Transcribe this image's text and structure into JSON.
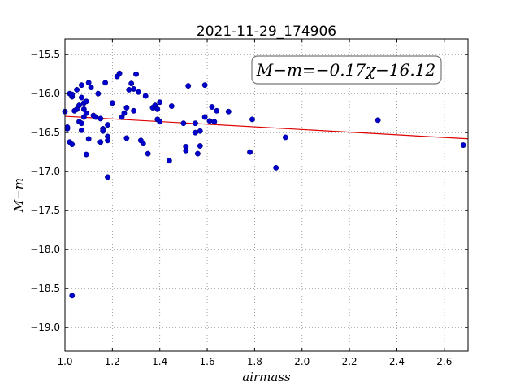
{
  "chart_data": {
    "type": "scatter",
    "title": "2021-11-29_174906",
    "xlabel": "airmass",
    "ylabel": "M−m",
    "xlim": [
      1.0,
      2.7
    ],
    "ylim": [
      -19.3,
      -15.3
    ],
    "x_ticks": [
      1.0,
      1.2,
      1.4,
      1.6,
      1.8,
      2.0,
      2.2,
      2.4,
      2.6
    ],
    "y_ticks": [
      -15.5,
      -16.0,
      -16.5,
      -17.0,
      -17.5,
      -18.0,
      -18.5,
      -19.0
    ],
    "x_tick_labels": [
      "1.0",
      "1.2",
      "1.4",
      "1.6",
      "1.8",
      "2.0",
      "2.2",
      "2.4",
      "2.6"
    ],
    "y_tick_labels": [
      "−15.5",
      "−16.0",
      "−16.5",
      "−17.0",
      "−17.5",
      "−18.0",
      "−18.5",
      "−19.0"
    ],
    "grid": true,
    "annotation": "M−m=−0.17χ−16.12",
    "fit_line": {
      "slope": -0.17,
      "intercept": -16.12,
      "color": "#dd0000"
    },
    "point_color": "#0000cc",
    "points": [
      [
        1.0,
        -16.23
      ],
      [
        1.01,
        -16.45
      ],
      [
        1.01,
        -16.43
      ],
      [
        1.02,
        -16.0
      ],
      [
        1.02,
        -16.62
      ],
      [
        1.03,
        -16.65
      ],
      [
        1.03,
        -16.04
      ],
      [
        1.03,
        -16.01
      ],
      [
        1.04,
        -16.22
      ],
      [
        1.05,
        -15.95
      ],
      [
        1.05,
        -16.2
      ],
      [
        1.06,
        -16.36
      ],
      [
        1.06,
        -16.15
      ],
      [
        1.07,
        -15.89
      ],
      [
        1.07,
        -16.47
      ],
      [
        1.07,
        -16.38
      ],
      [
        1.07,
        -16.05
      ],
      [
        1.08,
        -16.3
      ],
      [
        1.08,
        -16.12
      ],
      [
        1.08,
        -16.2
      ],
      [
        1.09,
        -16.1
      ],
      [
        1.09,
        -16.25
      ],
      [
        1.09,
        -16.78
      ],
      [
        1.1,
        -15.86
      ],
      [
        1.1,
        -16.58
      ],
      [
        1.11,
        -15.92
      ],
      [
        1.12,
        -16.28
      ],
      [
        1.13,
        -16.3
      ],
      [
        1.14,
        -16.0
      ],
      [
        1.15,
        -16.32
      ],
      [
        1.15,
        -16.62
      ],
      [
        1.16,
        -16.45
      ],
      [
        1.16,
        -16.48
      ],
      [
        1.17,
        -15.86
      ],
      [
        1.18,
        -16.4
      ],
      [
        1.18,
        -16.55
      ],
      [
        1.18,
        -16.6
      ],
      [
        1.18,
        -17.07
      ],
      [
        1.2,
        -16.12
      ],
      [
        1.22,
        -15.78
      ],
      [
        1.23,
        -15.74
      ],
      [
        1.24,
        -16.3
      ],
      [
        1.25,
        -16.25
      ],
      [
        1.26,
        -16.18
      ],
      [
        1.26,
        -16.57
      ],
      [
        1.27,
        -15.95
      ],
      [
        1.28,
        -15.87
      ],
      [
        1.29,
        -16.22
      ],
      [
        1.29,
        -15.94
      ],
      [
        1.3,
        -15.75
      ],
      [
        1.31,
        -15.98
      ],
      [
        1.32,
        -16.6
      ],
      [
        1.33,
        -16.64
      ],
      [
        1.34,
        -16.03
      ],
      [
        1.35,
        -16.77
      ],
      [
        1.37,
        -16.18
      ],
      [
        1.38,
        -16.15
      ],
      [
        1.39,
        -16.33
      ],
      [
        1.39,
        -16.2
      ],
      [
        1.4,
        -16.36
      ],
      [
        1.4,
        -16.11
      ],
      [
        1.44,
        -16.86
      ],
      [
        1.45,
        -16.16
      ],
      [
        1.5,
        -16.38
      ],
      [
        1.51,
        -16.68
      ],
      [
        1.51,
        -16.73
      ],
      [
        1.52,
        -15.9
      ],
      [
        1.55,
        -16.38
      ],
      [
        1.55,
        -16.5
      ],
      [
        1.56,
        -16.77
      ],
      [
        1.57,
        -16.67
      ],
      [
        1.57,
        -16.48
      ],
      [
        1.59,
        -16.3
      ],
      [
        1.59,
        -15.89
      ],
      [
        1.61,
        -16.35
      ],
      [
        1.62,
        -16.17
      ],
      [
        1.63,
        -16.36
      ],
      [
        1.64,
        -16.22
      ],
      [
        1.69,
        -16.23
      ],
      [
        1.78,
        -16.75
      ],
      [
        1.79,
        -16.33
      ],
      [
        1.89,
        -16.95
      ],
      [
        1.93,
        -16.56
      ],
      [
        2.32,
        -16.34
      ],
      [
        2.68,
        -16.66
      ],
      [
        1.03,
        -18.59
      ]
    ]
  }
}
